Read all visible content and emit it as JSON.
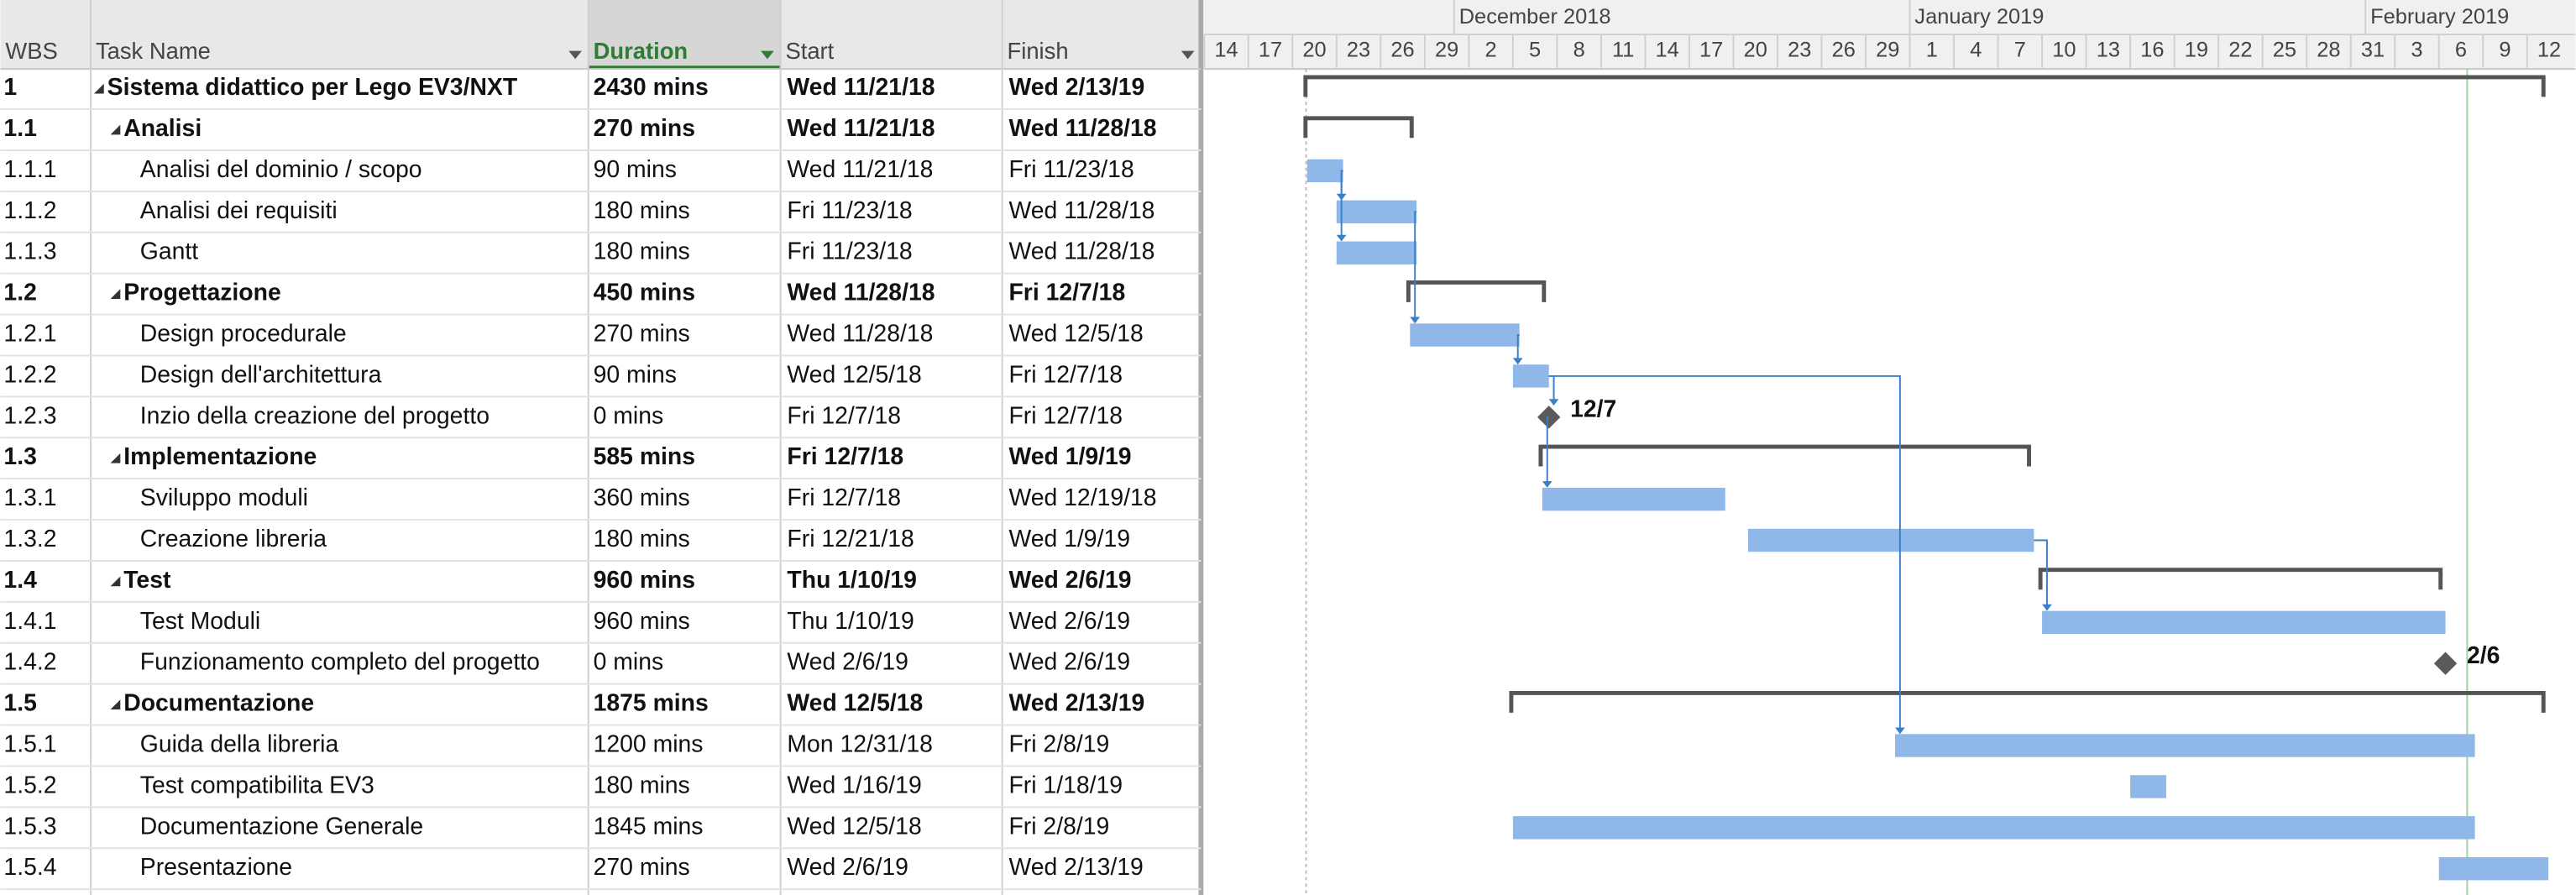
{
  "header": {
    "columns": [
      "WBS",
      "Task Name",
      "Duration",
      "Start",
      "Finish"
    ]
  },
  "timescale": {
    "months": [
      "December 2018",
      "January 2019",
      "February 2019"
    ],
    "days": [
      "14",
      "17",
      "20",
      "23",
      "26",
      "29",
      "2",
      "5",
      "8",
      "11",
      "14",
      "17",
      "20",
      "23",
      "26",
      "29",
      "1",
      "4",
      "7",
      "10",
      "13",
      "16",
      "19",
      "22",
      "25",
      "28",
      "31",
      "3",
      "6",
      "9",
      "12"
    ]
  },
  "rows": [
    {
      "wbs": "1",
      "name": "Sistema didattico per Lego EV3/NXT",
      "duration": "2430 mins",
      "start": "Wed 11/21/18",
      "finish": "Wed 2/13/19",
      "summary": true
    },
    {
      "wbs": "1.1",
      "name": "Analisi",
      "duration": "270 mins",
      "start": "Wed 11/21/18",
      "finish": "Wed 11/28/18",
      "summary": true
    },
    {
      "wbs": "1.1.1",
      "name": "Analisi del dominio / scopo",
      "duration": "90 mins",
      "start": "Wed 11/21/18",
      "finish": "Fri 11/23/18"
    },
    {
      "wbs": "1.1.2",
      "name": "Analisi dei requisiti",
      "duration": "180 mins",
      "start": "Fri 11/23/18",
      "finish": "Wed 11/28/18"
    },
    {
      "wbs": "1.1.3",
      "name": "Gantt",
      "duration": "180 mins",
      "start": "Fri 11/23/18",
      "finish": "Wed 11/28/18"
    },
    {
      "wbs": "1.2",
      "name": "Progettazione",
      "duration": "450 mins",
      "start": "Wed 11/28/18",
      "finish": "Fri 12/7/18",
      "summary": true
    },
    {
      "wbs": "1.2.1",
      "name": "Design procedurale",
      "duration": "270 mins",
      "start": "Wed 11/28/18",
      "finish": "Wed 12/5/18"
    },
    {
      "wbs": "1.2.2",
      "name": "Design dell'architettura",
      "duration": "90 mins",
      "start": "Wed 12/5/18",
      "finish": "Fri 12/7/18"
    },
    {
      "wbs": "1.2.3",
      "name": "Inzio della creazione del progetto",
      "duration": "0 mins",
      "start": "Fri 12/7/18",
      "finish": "Fri 12/7/18",
      "milestone_label": "12/7"
    },
    {
      "wbs": "1.3",
      "name": "Implementazione",
      "duration": "585 mins",
      "start": "Fri 12/7/18",
      "finish": "Wed 1/9/19",
      "summary": true
    },
    {
      "wbs": "1.3.1",
      "name": "Sviluppo moduli",
      "duration": "360 mins",
      "start": "Fri 12/7/18",
      "finish": "Wed 12/19/18"
    },
    {
      "wbs": "1.3.2",
      "name": "Creazione libreria",
      "duration": "180 mins",
      "start": "Fri 12/21/18",
      "finish": "Wed 1/9/19"
    },
    {
      "wbs": "1.4",
      "name": "Test",
      "duration": "960 mins",
      "start": "Thu 1/10/19",
      "finish": "Wed 2/6/19",
      "summary": true
    },
    {
      "wbs": "1.4.1",
      "name": "Test Moduli",
      "duration": "960 mins",
      "start": "Thu 1/10/19",
      "finish": "Wed 2/6/19"
    },
    {
      "wbs": "1.4.2",
      "name": "Funzionamento completo del progetto",
      "duration": "0 mins",
      "start": "Wed 2/6/19",
      "finish": "Wed 2/6/19",
      "milestone_label": "2/6"
    },
    {
      "wbs": "1.5",
      "name": "Documentazione",
      "duration": "1875 mins",
      "start": "Wed 12/5/18",
      "finish": "Wed 2/13/19",
      "summary": true
    },
    {
      "wbs": "1.5.1",
      "name": "Guida della libreria",
      "duration": "1200 mins",
      "start": "Mon 12/31/18",
      "finish": "Fri 2/8/19"
    },
    {
      "wbs": "1.5.2",
      "name": "Test compatibilita EV3",
      "duration": "180 mins",
      "start": "Wed 1/16/19",
      "finish": "Fri 1/18/19"
    },
    {
      "wbs": "1.5.3",
      "name": "Documentazione Generale",
      "duration": "1845 mins",
      "start": "Wed 12/5/18",
      "finish": "Fri 2/8/19"
    },
    {
      "wbs": "1.5.4",
      "name": "Presentazione",
      "duration": "270 mins",
      "start": "Wed 2/6/19",
      "finish": "Wed 2/13/19"
    }
  ]
}
